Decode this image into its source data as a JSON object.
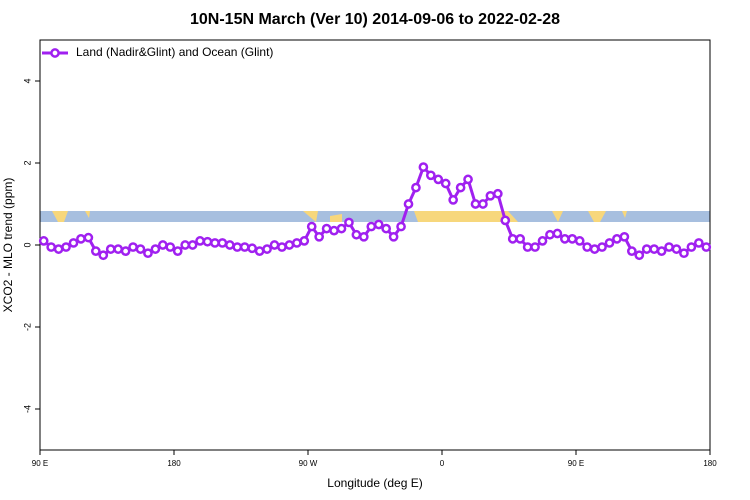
{
  "chart_data": {
    "type": "line",
    "title": "10N-15N March (Ver 10)   2014-09-06 to 2022-02-28",
    "xlabel": "Longitude (deg E)",
    "ylabel": "XCO2 - MLO trend (ppm)",
    "x": [
      92.5,
      97.5,
      102.5,
      107.5,
      112.5,
      117.5,
      122.5,
      127.5,
      132.5,
      137.5,
      142.5,
      147.5,
      152.5,
      157.5,
      162.5,
      167.5,
      172.5,
      177.5,
      182.5,
      187.5,
      192.5,
      197.5,
      202.5,
      207.5,
      212.5,
      217.5,
      222.5,
      227.5,
      232.5,
      237.5,
      242.5,
      247.5,
      252.5,
      257.5,
      262.5,
      267.5,
      272.5,
      277.5,
      282.5,
      287.5,
      292.5,
      297.5,
      302.5,
      307.5,
      312.5,
      317.5,
      322.5,
      327.5,
      332.5,
      337.5,
      342.5,
      347.5,
      352.5,
      357.5,
      362.5,
      367.5,
      372.5,
      377.5,
      382.5,
      387.5,
      392.5,
      397.5,
      402.5,
      407.5,
      412.5,
      417.5,
      422.5,
      427.5,
      432.5,
      437.5,
      442.5,
      447.5,
      452.5,
      457.5,
      462.5,
      467.5,
      472.5,
      477.5,
      482.5,
      487.5,
      492.5,
      497.5,
      502.5,
      507.5,
      512.5,
      517.5,
      522.5,
      527.5,
      532.5,
      537.5
    ],
    "series": [
      {
        "name": "Land (Nadir&Glint) and Ocean (Glint)",
        "color": "#a020f0",
        "values": [
          0.1,
          -0.05,
          -0.1,
          -0.05,
          0.05,
          0.15,
          0.18,
          -0.15,
          -0.25,
          -0.1,
          -0.1,
          -0.15,
          -0.05,
          -0.1,
          -0.2,
          -0.1,
          0.0,
          -0.05,
          -0.15,
          0.0,
          0.0,
          0.1,
          0.08,
          0.05,
          0.05,
          0.0,
          -0.05,
          -0.05,
          -0.08,
          -0.15,
          -0.1,
          0.0,
          -0.05,
          0.0,
          0.05,
          0.1,
          0.45,
          0.2,
          0.4,
          0.35,
          0.4,
          0.55,
          0.25,
          0.2,
          0.45,
          0.5,
          0.4,
          0.2,
          0.45,
          1.0,
          1.4,
          1.9,
          1.7,
          1.6,
          1.5,
          1.1,
          1.4,
          1.6,
          1.0,
          1.0,
          1.2,
          1.25,
          0.6,
          0.15,
          0.15,
          -0.05,
          -0.05,
          0.1,
          0.25,
          0.28,
          0.15,
          0.15,
          0.1,
          -0.05,
          -0.1,
          -0.05,
          0.05,
          0.15,
          0.2,
          -0.15,
          -0.25,
          -0.1,
          -0.1,
          -0.15,
          -0.05,
          -0.1,
          -0.2,
          -0.05,
          0.05,
          -0.05
        ]
      }
    ],
    "xlim": [
      90,
      540
    ],
    "xticks": [
      {
        "value": 90,
        "label": "90 E"
      },
      180,
      {
        "value": 270,
        "label": "90 W"
      },
      {
        "value": 360,
        "label": "0"
      },
      {
        "value": 450,
        "label": "90 E"
      },
      {
        "value": 540,
        "label": "180"
      }
    ],
    "ylim": [
      -5,
      5
    ],
    "yticks": [
      -4,
      -2,
      0,
      2,
      4
    ],
    "legend": "top-left"
  }
}
